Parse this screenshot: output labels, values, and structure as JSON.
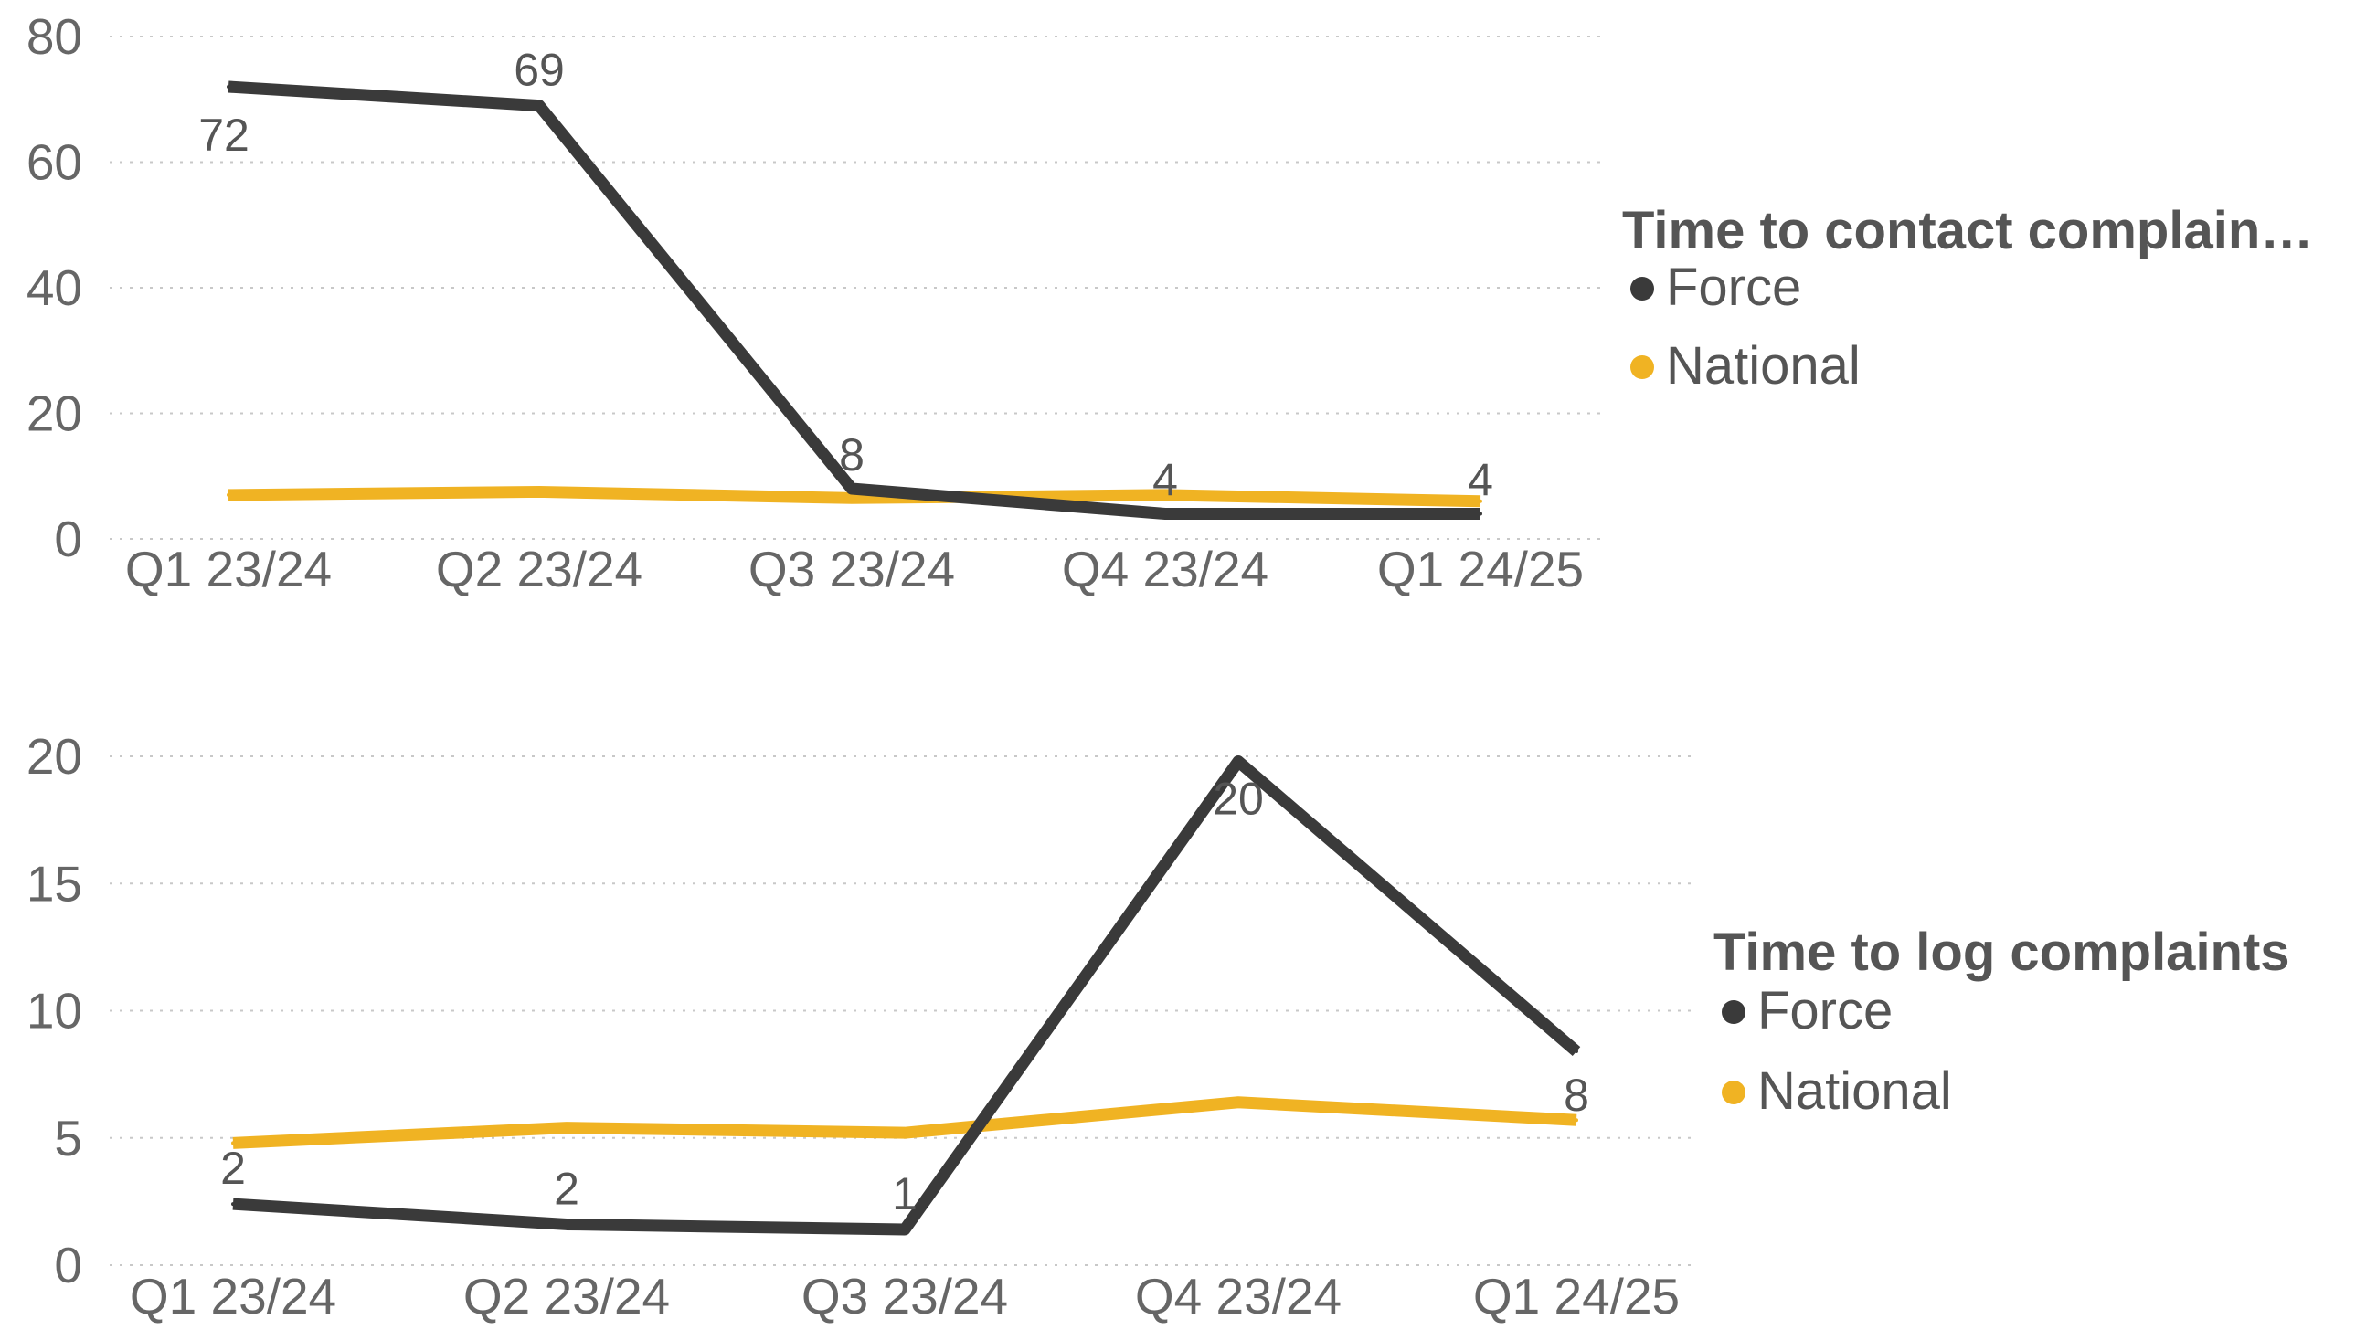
{
  "colors": {
    "force": "#3a3a3a",
    "national": "#f0b323"
  },
  "chart_data": [
    {
      "type": "line",
      "categories": [
        "Q1 23/24",
        "Q2 23/24",
        "Q3 23/24",
        "Q4 23/24",
        "Q1 24/25"
      ],
      "yticks": [
        "0",
        "20",
        "40",
        "60",
        "80"
      ],
      "ylim": [
        0,
        80
      ],
      "grid": true,
      "legend_title": "Time to contact complain…",
      "legend_position": "right",
      "series": [
        {
          "name": "Force",
          "color_key": "force",
          "values": [
            72,
            69,
            8,
            4,
            4
          ],
          "labels": [
            "72",
            "69",
            "8",
            "4",
            "4"
          ]
        },
        {
          "name": "National",
          "color_key": "national",
          "values": [
            7,
            7.5,
            6.5,
            7,
            6
          ]
        }
      ]
    },
    {
      "type": "line",
      "categories": [
        "Q1 23/24",
        "Q2 23/24",
        "Q3 23/24",
        "Q4 23/24",
        "Q1 24/25"
      ],
      "yticks": [
        "0",
        "5",
        "10",
        "15",
        "20"
      ],
      "ylim": [
        0,
        20
      ],
      "grid": true,
      "legend_title": "Time to log complaints",
      "legend_position": "right",
      "series": [
        {
          "name": "Force",
          "color_key": "force",
          "values": [
            2.4,
            1.6,
            1.4,
            19.8,
            8.4
          ],
          "labels": [
            "2",
            "2",
            "1",
            "20",
            "8"
          ]
        },
        {
          "name": "National",
          "color_key": "national",
          "values": [
            4.8,
            5.4,
            5.2,
            6.4,
            5.7
          ]
        }
      ]
    }
  ]
}
